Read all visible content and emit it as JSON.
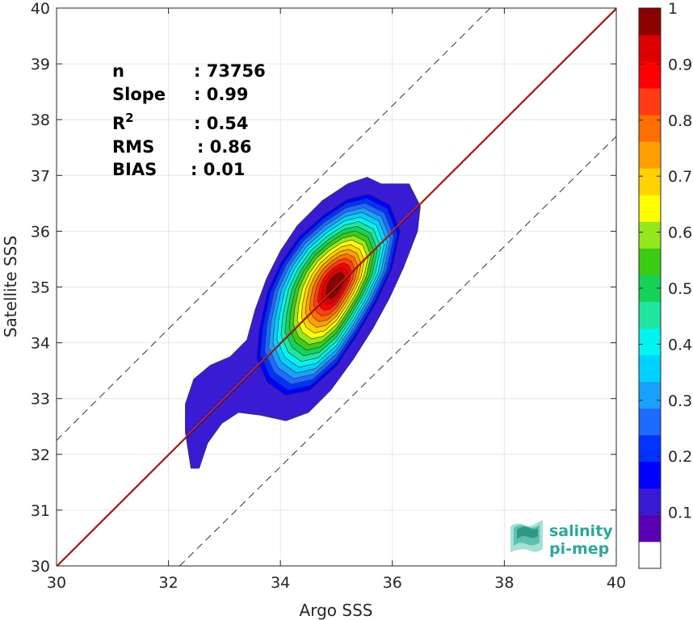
{
  "chart_data": {
    "type": "heatmap",
    "xlabel": "Argo SSS",
    "ylabel": "Satellite SSS",
    "xlim": [
      30,
      40
    ],
    "ylim": [
      30,
      40
    ],
    "x_ticks": [
      "30",
      "32",
      "34",
      "36",
      "38",
      "40"
    ],
    "y_ticks": [
      "30",
      "31",
      "32",
      "33",
      "34",
      "35",
      "36",
      "37",
      "38",
      "39",
      "40"
    ],
    "grid": true,
    "stats": [
      {
        "label": "n",
        "value": ": 73756"
      },
      {
        "label": "Slope",
        "value": ": 0.99"
      },
      {
        "label": "R",
        "sup": "2",
        "value": ": 0.54"
      },
      {
        "label": "RMS",
        "value": ": 0.86"
      },
      {
        "label": "BIAS",
        "value": ": 0.01"
      }
    ],
    "one_to_one_line": {
      "from": [
        30,
        30
      ],
      "to": [
        40,
        40
      ],
      "color": "#d62728"
    },
    "dashed_offset_lines": [
      {
        "from": [
          30,
          32.25
        ],
        "to": [
          40,
          42.25
        ]
      },
      {
        "from": [
          32.2,
          30
        ],
        "to": [
          40,
          37.7
        ]
      }
    ],
    "density_levels": [
      0.05,
      0.1,
      0.15,
      0.2,
      0.25,
      0.3,
      0.35,
      0.4,
      0.45,
      0.5,
      0.55,
      0.6,
      0.65,
      0.7,
      0.75,
      0.8,
      0.85,
      0.9,
      0.95,
      1.0
    ],
    "density_peak": {
      "x": 35.0,
      "y": 35.05
    },
    "colorbar": {
      "range": [
        0,
        1
      ],
      "ticks": [
        "0.1",
        "0.2",
        "0.3",
        "0.4",
        "0.5",
        "0.6",
        "0.7",
        "0.8",
        "0.9",
        "1"
      ],
      "colors": [
        "#ffffff",
        "#5a00b4",
        "#3a1bd4",
        "#0000ff",
        "#0033ff",
        "#1e6bff",
        "#1aa0ff",
        "#00d2ff",
        "#00f5f0",
        "#1ee6a0",
        "#14d25a",
        "#3ccc14",
        "#96e61e",
        "#ffff00",
        "#ffd200",
        "#ffa000",
        "#ff6e00",
        "#ff3c14",
        "#ff0000",
        "#dc0000",
        "#8c0000"
      ]
    }
  },
  "logo": {
    "line1": "salinity",
    "line2": "pi-mep"
  }
}
